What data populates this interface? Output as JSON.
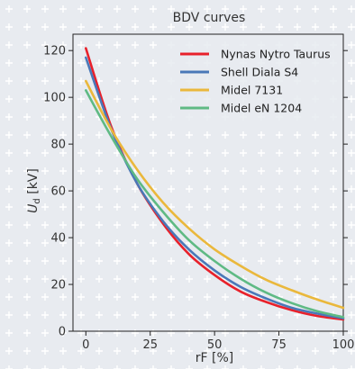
{
  "chart_data": {
    "type": "line",
    "title": "BDV curves",
    "xlabel": "rF [%]",
    "ylabel_main": "U",
    "ylabel_sub": "d",
    "ylabel_unit": " [kV]",
    "xlim": [
      -5,
      100
    ],
    "ylim": [
      0,
      127
    ],
    "xticks": [
      0,
      25,
      50,
      75,
      100
    ],
    "yticks": [
      0,
      20,
      40,
      60,
      80,
      100,
      120
    ],
    "grid": true,
    "legend_position": "top-right",
    "x": [
      0,
      10,
      20,
      30,
      40,
      50,
      60,
      70,
      80,
      90,
      100
    ],
    "series": [
      {
        "name": "Nynas Nytro Taurus",
        "color": "#e8212b",
        "values": [
          121,
          87,
          63,
          46,
          33,
          24,
          17,
          12.5,
          9,
          6.5,
          5
        ]
      },
      {
        "name": "Shell Diala S4",
        "color": "#4a78b8",
        "values": [
          117,
          86,
          63,
          47,
          35,
          26,
          19,
          14,
          10,
          7.5,
          5.5
        ]
      },
      {
        "name": "Midel 7131",
        "color": "#eab83c",
        "values": [
          107,
          86,
          69,
          55,
          44,
          35,
          28,
          22,
          17.5,
          13.5,
          10
        ]
      },
      {
        "name": "Midel eN 1204",
        "color": "#5fba84",
        "values": [
          103,
          83,
          65,
          51,
          39,
          30,
          22.5,
          16.5,
          12,
          8.5,
          6
        ]
      }
    ]
  }
}
